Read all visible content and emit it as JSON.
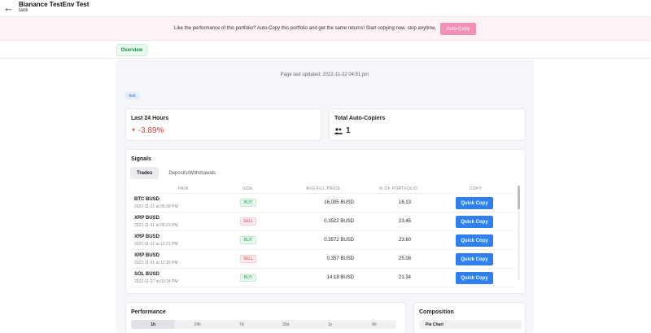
{
  "header": {
    "title": "Bianance TestEnv Test",
    "subtitle": "tank",
    "back_icon": "arrow-left-icon"
  },
  "banner": {
    "text": "Like the performance of this portfolio? Auto-Copy this portfolio and get the same returns! Start copying now, stop anytime.",
    "button": "Auto-Copy",
    "button_color": "#f48fb8"
  },
  "tabs": {
    "overview": "Overview"
  },
  "page": {
    "updated": "Page last updated: 2022-11-22 04:51 pm",
    "tag": "test"
  },
  "last24": {
    "title": "Last 24 Hours",
    "change": "-3.89%",
    "color": "#e23b3b"
  },
  "copiers": {
    "title": "Total Auto-Copiers",
    "count": "1",
    "icon": "users-icon"
  },
  "signals": {
    "title": "Signals",
    "tabs": [
      "Trades",
      "Deposits/Withdrawals"
    ],
    "headers": [
      "PAIR",
      "SIDE",
      "AVG FILL PRICE",
      "% OF PORTFOLIO",
      "COPY"
    ],
    "rows": [
      {
        "pair": "BTC BUSD",
        "date": "2022-11-21 at 05:39 PM",
        "side": "BUY",
        "price": "16,005 BUSD",
        "pct": "16.13",
        "copy": "Quick Copy"
      },
      {
        "pair": "XRP BUSD",
        "date": "2022-11-21 at 05:21 PM",
        "side": "SELL",
        "price": "0.3522 BUSD",
        "pct": "23.45",
        "copy": "Quick Copy"
      },
      {
        "pair": "XRP BUSD",
        "date": "2022-11-21 at 12:21 PM",
        "side": "BUY",
        "price": "0.3572 BUSD",
        "pct": "23.60",
        "copy": "Quick Copy"
      },
      {
        "pair": "XRP BUSD",
        "date": "2022-11-21 at 12:15 PM",
        "side": "SELL",
        "price": "0.357 BUSD",
        "pct": "25.08",
        "copy": "Quick Copy"
      },
      {
        "pair": "SOL BUSD",
        "date": "2022-11-17 at 03:24 PM",
        "side": "BUY",
        "price": "14.18 BUSD",
        "pct": "21.34",
        "copy": "Quick Copy"
      }
    ]
  },
  "performance": {
    "title": "Performance",
    "ranges": [
      "1h",
      "24h",
      "7d",
      "30d",
      "1y",
      "All"
    ]
  },
  "composition": {
    "title": "Composition",
    "tab": "Pie Chart"
  }
}
